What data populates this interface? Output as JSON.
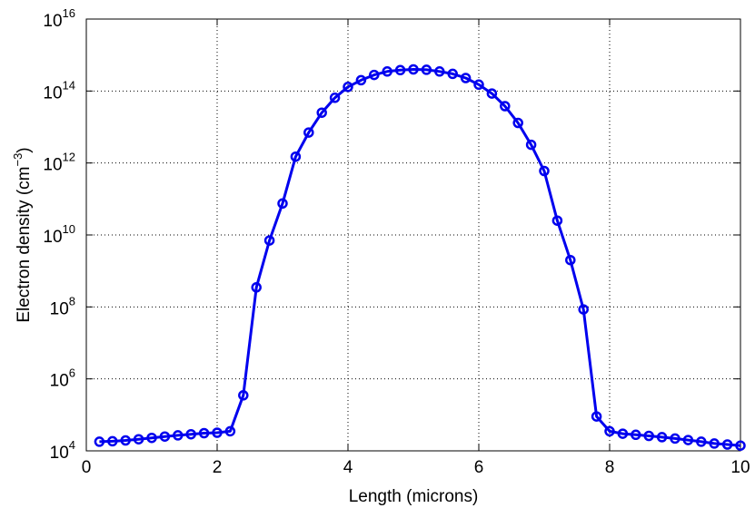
{
  "chart_data": {
    "type": "line",
    "title": "",
    "xlabel": "Length (microns)",
    "ylabel": {
      "prefix": "Electron density (cm",
      "sup": "−3",
      "suffix": ")"
    },
    "x_scale": "linear",
    "y_scale": "log",
    "xlim": [
      0,
      10
    ],
    "ylim": [
      10000,
      1e+16
    ],
    "x_ticks": [
      "0",
      "2",
      "4",
      "6",
      "8",
      "10"
    ],
    "y_ticks": [
      {
        "base": "10",
        "exp": "4"
      },
      {
        "base": "10",
        "exp": "6"
      },
      {
        "base": "10",
        "exp": "8"
      },
      {
        "base": "10",
        "exp": "10"
      },
      {
        "base": "10",
        "exp": "12"
      },
      {
        "base": "10",
        "exp": "14"
      },
      {
        "base": "10",
        "exp": "16"
      }
    ],
    "grid": true,
    "grid_style": "dotted",
    "color": "#0000ee",
    "marker": "circle",
    "series": [
      {
        "x": [
          0.2,
          0.4,
          0.6,
          0.8,
          1.0,
          1.2,
          1.4,
          1.6,
          1.8,
          2.0,
          2.2,
          2.4,
          2.6,
          2.8,
          3.0,
          3.2,
          3.4,
          3.6,
          3.8,
          4.0,
          4.2,
          4.4,
          4.6,
          4.8,
          5.0,
          5.2,
          5.4,
          5.6,
          5.8,
          6.0,
          6.2,
          6.4,
          6.6,
          6.8,
          7.0,
          7.2,
          7.4,
          7.6,
          7.8,
          8.0,
          8.2,
          8.4,
          8.6,
          8.8,
          9.0,
          9.2,
          9.4,
          9.6,
          9.8,
          10.0
        ],
        "y": [
          18000,
          18500,
          19500,
          21000,
          23000,
          25000,
          27000,
          29000,
          31000,
          32000,
          35000,
          350000,
          350000000,
          7000000000,
          75000000000,
          1500000000000,
          7000000000000,
          25000000000000,
          65000000000000,
          130000000000000,
          200000000000000,
          280000000000000,
          350000000000000,
          380000000000000,
          400000000000000,
          390000000000000,
          350000000000000,
          300000000000000,
          230000000000000,
          150000000000000,
          85000000000000,
          38000000000000,
          13000000000000,
          3200000000000,
          600000000000,
          25000000000,
          2000000000,
          85000000,
          90000,
          35000,
          30000,
          28000,
          26000,
          24000,
          22000,
          20000,
          18000,
          16000,
          15000,
          14000
        ]
      }
    ]
  }
}
